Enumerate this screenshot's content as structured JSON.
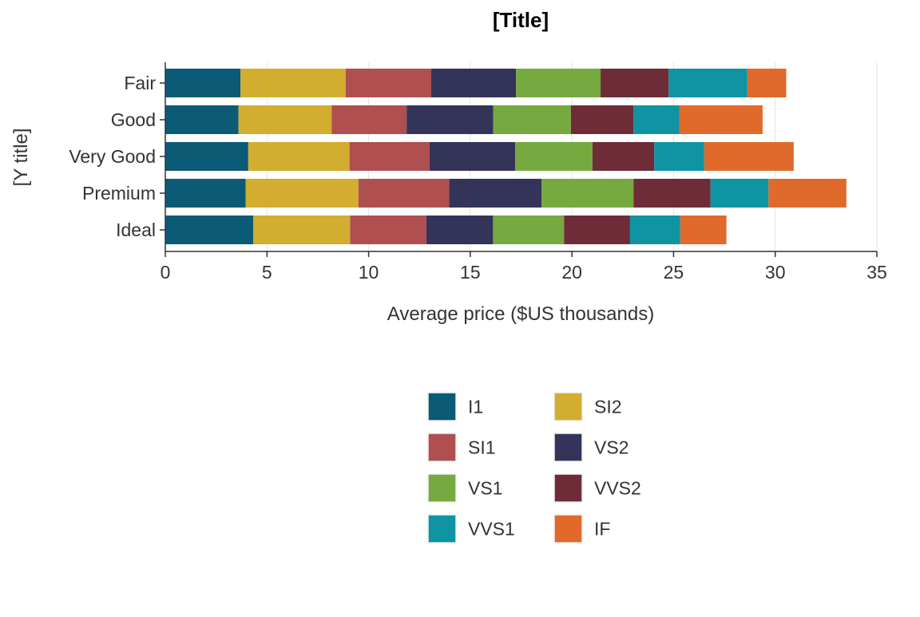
{
  "chart_data": {
    "type": "bar",
    "orientation": "horizontal",
    "stacked": true,
    "title": "[Title]",
    "xlabel": "Average price ($US thousands)",
    "ylabel": "[Y title]",
    "xlim": [
      0,
      35
    ],
    "x_ticks": [
      0,
      5,
      10,
      15,
      20,
      25,
      30,
      35
    ],
    "grid": "vertical",
    "legend_position": "bottom",
    "categories": [
      "Fair",
      "Good",
      "Very Good",
      "Premium",
      "Ideal"
    ],
    "series": [
      {
        "name": "I1",
        "color": "#0b5a76",
        "values": [
          3.7,
          3.6,
          4.08,
          3.95,
          4.33
        ]
      },
      {
        "name": "SI2",
        "color": "#d3ad2f",
        "values": [
          5.17,
          4.58,
          4.98,
          5.55,
          4.76
        ]
      },
      {
        "name": "SI1",
        "color": "#b04f50",
        "values": [
          4.21,
          3.69,
          3.94,
          4.46,
          3.75
        ]
      },
      {
        "name": "VS2",
        "color": "#34335a",
        "values": [
          4.17,
          4.26,
          4.21,
          4.55,
          3.28
        ]
      },
      {
        "name": "VS1",
        "color": "#76a93f",
        "values": [
          4.16,
          3.82,
          3.8,
          4.52,
          3.49
        ]
      },
      {
        "name": "VVS2",
        "color": "#6e2c38",
        "values": [
          3.35,
          3.08,
          3.04,
          3.79,
          3.25
        ]
      },
      {
        "name": "VVS1",
        "color": "#0e94a3",
        "values": [
          3.87,
          2.25,
          2.46,
          2.85,
          2.47
        ]
      },
      {
        "name": "IF",
        "color": "#e06a2b",
        "values": [
          1.91,
          4.1,
          4.4,
          3.83,
          2.27
        ]
      }
    ]
  }
}
